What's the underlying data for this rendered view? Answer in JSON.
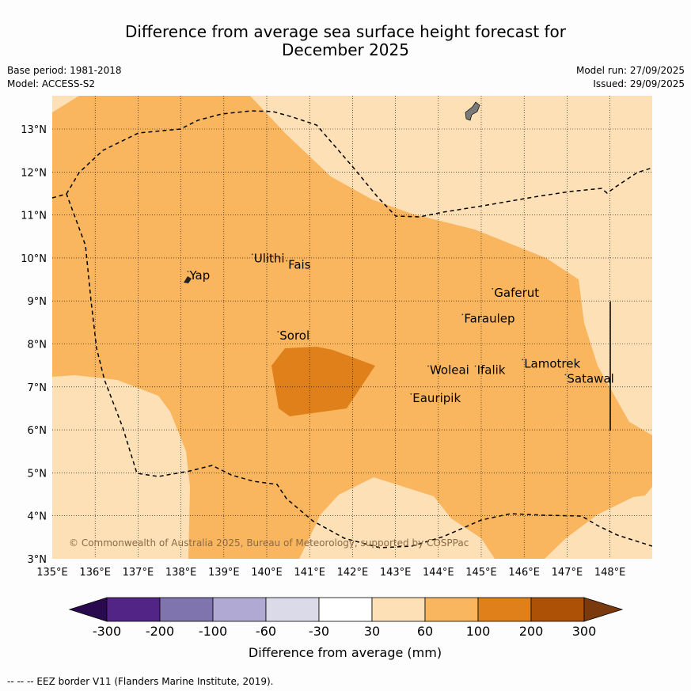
{
  "title_line1": "Difference from average sea surface height forecast for",
  "title_line2": "December 2025",
  "base_period": "Base period: 1981-2018",
  "model": "Model: ACCESS-S2",
  "model_run": "Model run: 27/09/2025",
  "issued": "Issued: 29/09/2025",
  "copyright": "© Commonwealth of Australia 2025, Bureau of Meteorology, supported by COSPPac",
  "axes": {
    "x_ticks": [
      "135°E",
      "136°E",
      "137°E",
      "138°E",
      "139°E",
      "140°E",
      "141°E",
      "142°E",
      "143°E",
      "144°E",
      "145°E",
      "146°E",
      "147°E",
      "148°E"
    ],
    "y_ticks": [
      "3°N",
      "4°N",
      "5°N",
      "6°N",
      "7°N",
      "8°N",
      "9°N",
      "10°N",
      "11°N",
      "12°N",
      "13°N"
    ]
  },
  "places": [
    {
      "name": "Yap",
      "lon": 138.2,
      "lat": 9.5
    },
    {
      "name": "Ulithi",
      "lon": 139.7,
      "lat": 9.9
    },
    {
      "name": "Fais",
      "lon": 140.5,
      "lat": 9.75
    },
    {
      "name": "Gaferut",
      "lon": 145.3,
      "lat": 9.1
    },
    {
      "name": "Faraulep",
      "lon": 144.6,
      "lat": 8.5
    },
    {
      "name": "Sorol",
      "lon": 140.3,
      "lat": 8.1
    },
    {
      "name": "Woleai",
      "lon": 143.8,
      "lat": 7.3
    },
    {
      "name": "Ifalik",
      "lon": 144.9,
      "lat": 7.3
    },
    {
      "name": "Lamotrek",
      "lon": 146.0,
      "lat": 7.45
    },
    {
      "name": "Satawal",
      "lon": 147.0,
      "lat": 7.1
    },
    {
      "name": "Eauripik",
      "lon": 143.4,
      "lat": 6.65
    }
  ],
  "colorbar": {
    "label": "Difference from average (mm)",
    "ticks": [
      "-300",
      "-200",
      "-100",
      "-60",
      "-30",
      "30",
      "60",
      "100",
      "200",
      "300"
    ],
    "colors": [
      "#2a0a4e",
      "#522485",
      "#7f74ad",
      "#b0a9d3",
      "#dadae8",
      "#ffffff",
      "#fde0b5",
      "#f9b65f",
      "#e0801a",
      "#ad5107",
      "#7a3a0e"
    ]
  },
  "footer": "--  --  -- EEZ border V11 (Flanders Marine Institute, 2019)."
}
